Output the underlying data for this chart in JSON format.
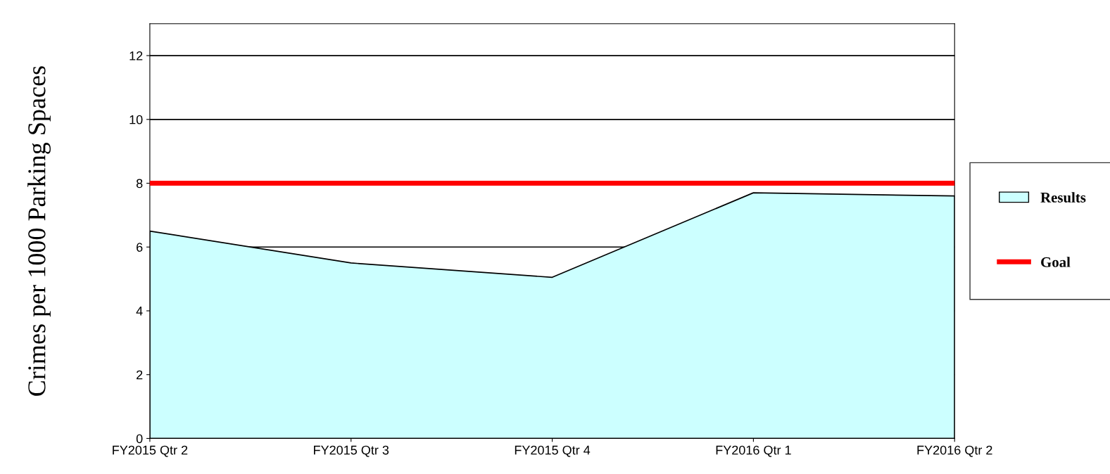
{
  "chart_data": {
    "type": "area",
    "ylabel": "Crimes per 1000 Parking Spaces",
    "categories": [
      "FY2015 Qtr 2",
      "FY2015 Qtr 3",
      "FY2015 Qtr 4",
      "FY2016 Qtr 1",
      "FY2016 Qtr 2"
    ],
    "series": [
      {
        "name": "Results",
        "color": "#ccffff",
        "values": [
          6.5,
          5.5,
          5.05,
          7.7,
          7.6
        ]
      }
    ],
    "ref_lines": [
      {
        "axis": "y",
        "value": 8,
        "label": "Goal",
        "color": "#ff0000"
      }
    ],
    "ylim": [
      0,
      13
    ],
    "yticks": [
      0,
      2,
      4,
      6,
      8,
      10,
      12
    ],
    "grid": "y",
    "legend": "right"
  }
}
